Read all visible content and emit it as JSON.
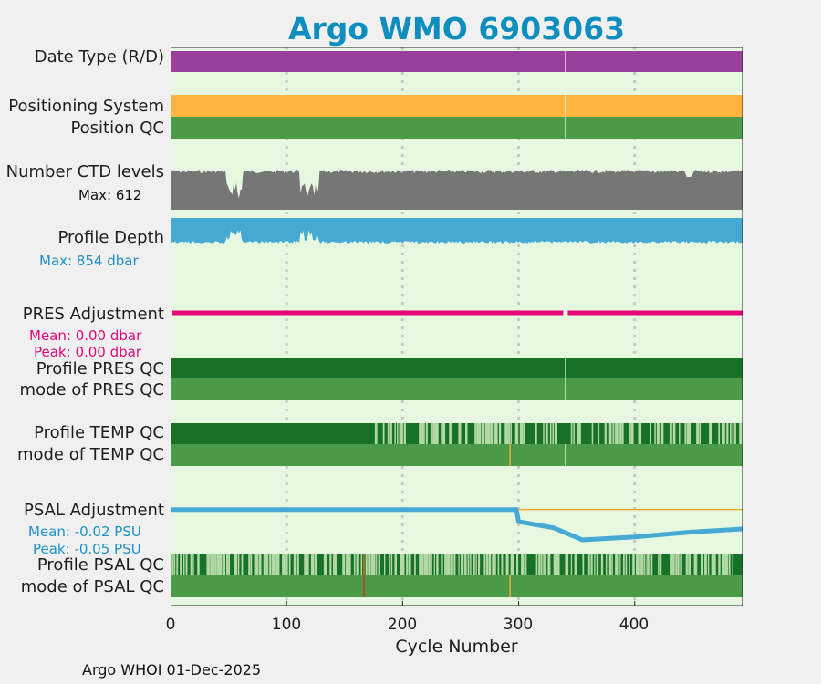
{
  "chart_data": {
    "type": "strip",
    "title": "Argo WMO 6903063",
    "xlabel": "Cycle Number",
    "xlim": [
      0,
      493
    ],
    "xticks": [
      0,
      100,
      200,
      300,
      400
    ],
    "grid": true,
    "panels": {
      "date_type": {
        "label": "Date Type (R/D)",
        "color": "#9b3f9d",
        "gap_cycle": 340
      },
      "positioning": {
        "label": "Positioning System",
        "color": "#fdb53f",
        "gap_cycle": 340
      },
      "position_qc": {
        "label": "Position QC",
        "color": "#4a9a48",
        "gap_cycle": 340
      },
      "ctd_levels": {
        "label": "Number CTD levels",
        "max_label": "Max: 612",
        "color": "#767676"
      },
      "profile_depth": {
        "label": "Profile Depth",
        "max_label": "Max:  854 dbar",
        "color": "#45a9d4"
      },
      "pres_adjustment": {
        "label": "PRES Adjustment",
        "mean": "Mean: 0.00 dbar",
        "peak": "Peak: 0.00 dbar",
        "color": "#e4087a",
        "gap_cycle": 340
      },
      "pres_qc": {
        "label1": "Profile PRES QC",
        "label2": "mode of PRES QC"
      },
      "temp_qc": {
        "label1": "Profile TEMP QC",
        "label2": "mode of TEMP QC"
      },
      "psal_adjustment": {
        "label": "PSAL Adjustment",
        "mean": "Mean: -0.02 PSU",
        "peak": "Peak: -0.05 PSU",
        "color": "#45a9d4",
        "x": [
          0,
          298,
          300,
          330,
          355,
          400,
          450,
          493
        ],
        "y": [
          0.0,
          0.0,
          -0.02,
          -0.03,
          -0.05,
          -0.045,
          -0.037,
          -0.032
        ],
        "ylim": [
          -0.08,
          0.01
        ],
        "ref_line": {
          "x": [
            298,
            493
          ],
          "y": 0.0,
          "color": "#f0a830"
        }
      },
      "psal_qc": {
        "label1": "Profile PSAL QC",
        "label2": "mode of PSAL QC"
      }
    },
    "footer": "Argo WHOI 01-Dec-2025"
  }
}
